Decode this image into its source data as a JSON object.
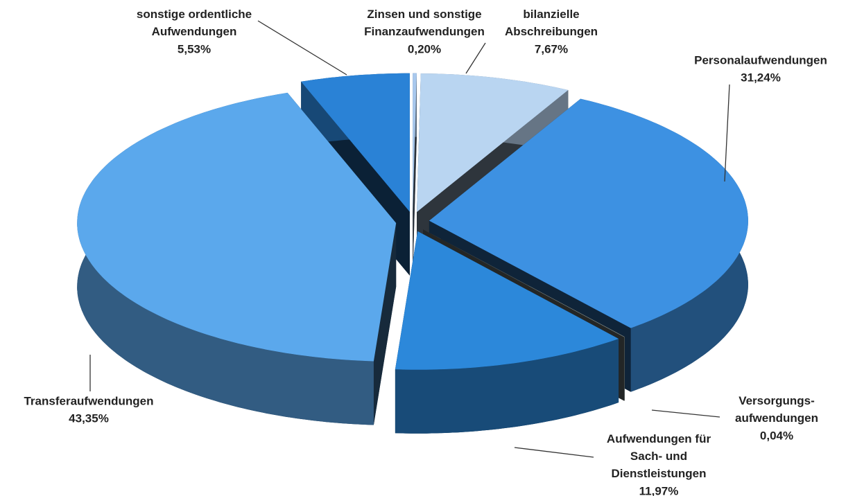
{
  "chart_data": {
    "type": "pie",
    "categories": [
      "Zinsen und sonstige\nFinanzaufwendungen",
      "bilanzielle\nAbschreibungen",
      "Personalaufwendungen",
      "Versorgungs-\naufwendungen",
      "Aufwendungen für\nSach- und\nDienstleistungen",
      "Transferaufwendungen",
      "sonstige ordentliche\nAufwendungen"
    ],
    "values": [
      0.2,
      7.67,
      31.24,
      0.04,
      11.97,
      43.35,
      5.53
    ],
    "value_labels": [
      "0,20%",
      "7,67%",
      "31,24%",
      "0,04%",
      "11,97%",
      "43,35%",
      "5,53%"
    ],
    "colors": [
      "#a9c9ee",
      "#b9d5f1",
      "#3d91e2",
      "#8a9696",
      "#2c88da",
      "#5ba8ec",
      "#2a82d6"
    ]
  }
}
